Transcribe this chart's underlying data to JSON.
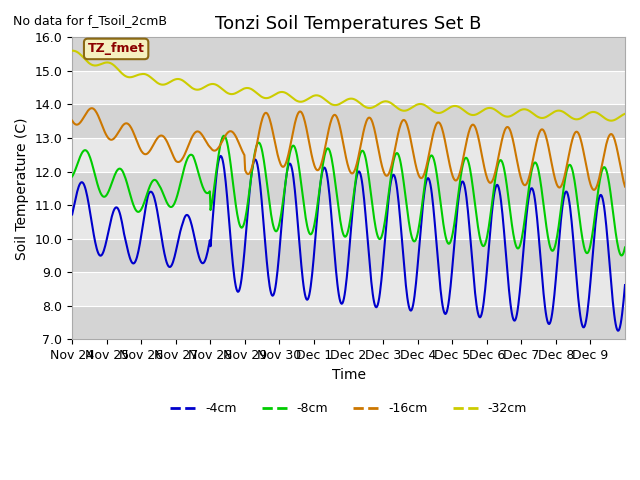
{
  "title": "Tonzi Soil Temperatures Set B",
  "no_data_text": "No data for f_Tsoil_2cmB",
  "tz_fmet_label": "TZ_fmet",
  "ylabel": "Soil Temperature (C)",
  "xlabel": "Time",
  "ylim": [
    7.0,
    16.0
  ],
  "yticks": [
    7.0,
    8.0,
    9.0,
    10.0,
    11.0,
    12.0,
    13.0,
    14.0,
    15.0,
    16.0
  ],
  "xtick_labels": [
    "Nov 24",
    "Nov 25",
    "Nov 26",
    "Nov 27",
    "Nov 28",
    "Nov 29",
    "Nov 30",
    "Dec 1",
    "Dec 2",
    "Dec 3",
    "Dec 4",
    "Dec 5",
    "Dec 6",
    "Dec 7",
    "Dec 8",
    "Dec 9"
  ],
  "line_colors": {
    "4cm": "#0000cc",
    "8cm": "#00cc00",
    "16cm": "#cc7700",
    "32cm": "#cccc00"
  },
  "legend_labels": [
    "-4cm",
    "-8cm",
    "-16cm",
    "-32cm"
  ],
  "background_color": "#ffffff",
  "plot_bg_color": "#e8e8e8",
  "title_fontsize": 13,
  "axis_fontsize": 10,
  "tick_fontsize": 9
}
